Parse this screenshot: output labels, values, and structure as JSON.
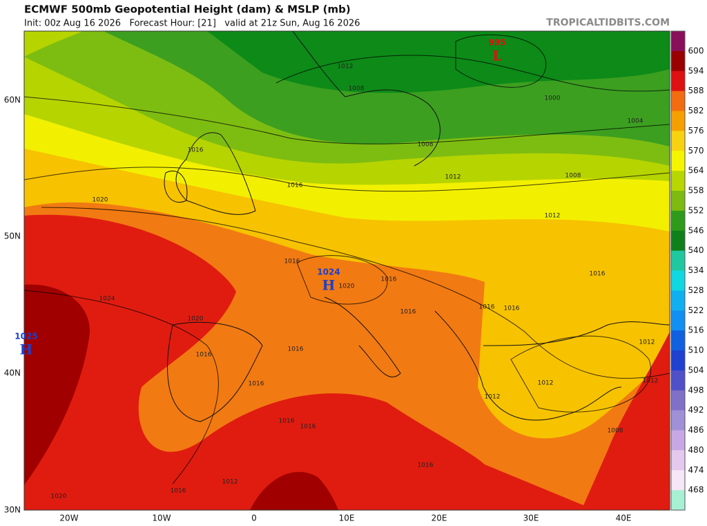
{
  "header": {
    "title": "ECMWF 500mb Geopotential Height (dam) & MSLP (mb)",
    "subtitle": "Init: 00z Aug 16 2026   Forecast Hour: [21]   valid at 21z Sun, Aug 16 2026",
    "credit": "TROPICALTIDBITS.COM"
  },
  "map": {
    "lat_labels": [
      "60N",
      "50N",
      "40N",
      "30N"
    ],
    "lon_labels": [
      "20W",
      "10W",
      "0",
      "10E",
      "20E",
      "30E",
      "40E"
    ],
    "centers": [
      {
        "value": "995",
        "symbol": "L"
      },
      {
        "value": "1024",
        "symbol": "H"
      },
      {
        "value": "1025",
        "symbol": "H"
      }
    ],
    "isobar_labels": [
      "1012",
      "1008",
      "1000",
      "1004",
      "1016",
      "1008",
      "1012",
      "1008",
      "1016",
      "1012",
      "1020",
      "1016",
      "1016",
      "1016",
      "1020",
      "1024",
      "1016",
      "1016",
      "1016",
      "1020",
      "1012",
      "1016",
      "1016",
      "1016",
      "1012",
      "1012",
      "1012",
      "1016",
      "1008",
      "1016",
      "1012",
      "1016",
      "1020",
      "1016"
    ]
  },
  "colorbar": {
    "labels": [
      "600",
      "594",
      "588",
      "582",
      "576",
      "570",
      "564",
      "558",
      "552",
      "546",
      "540",
      "534",
      "528",
      "522",
      "516",
      "510",
      "504",
      "498",
      "492",
      "486",
      "480",
      "474",
      "468"
    ]
  }
}
